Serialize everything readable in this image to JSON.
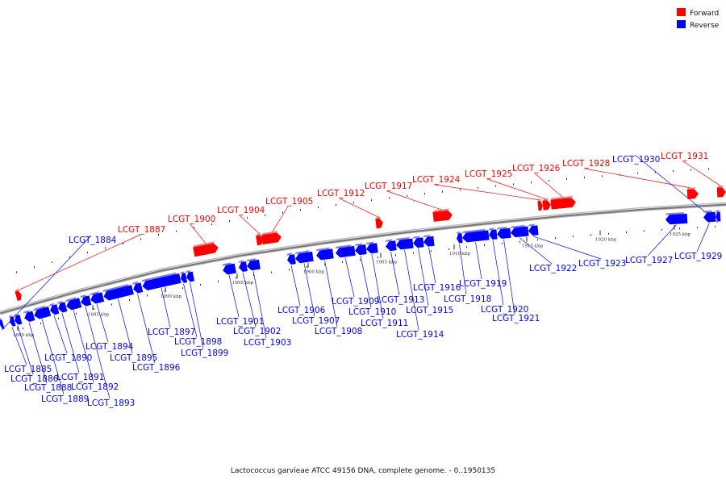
{
  "legend": [
    {
      "label": "Forward",
      "color": "#ff0000"
    },
    {
      "label": "Reverse",
      "color": "#0000ff"
    }
  ],
  "caption": "Lactococcus garvieae ATCC 49156 DNA, complete genome. - 0..1950135",
  "colors": {
    "forward": "#ff0000",
    "reverse": "#0000ff",
    "backbone": "#777777",
    "line": "#555555"
  },
  "axis_ticks": [
    "1880 kbp",
    "1885 kbp",
    "1890 kbp",
    "1895 kbp",
    "1900 kbp",
    "1905 kbp",
    "1910 kbp",
    "1915 kbp",
    "1920 kbp",
    "1925 kbp"
  ],
  "genes": [
    {
      "name": "LCGT_1884",
      "strand": "reverse"
    },
    {
      "name": "LCGT_1885",
      "strand": "reverse"
    },
    {
      "name": "LCGT_1886",
      "strand": "reverse"
    },
    {
      "name": "LCGT_1887",
      "strand": "forward"
    },
    {
      "name": "LCGT_1888",
      "strand": "reverse"
    },
    {
      "name": "LCGT_1889",
      "strand": "reverse"
    },
    {
      "name": "LCGT_1890",
      "strand": "reverse"
    },
    {
      "name": "LCGT_1891",
      "strand": "reverse"
    },
    {
      "name": "LCGT_1892",
      "strand": "reverse"
    },
    {
      "name": "LCGT_1893",
      "strand": "reverse"
    },
    {
      "name": "LCGT_1894",
      "strand": "reverse"
    },
    {
      "name": "LCGT_1895",
      "strand": "reverse"
    },
    {
      "name": "LCGT_1896",
      "strand": "reverse"
    },
    {
      "name": "LCGT_1897",
      "strand": "reverse"
    },
    {
      "name": "LCGT_1898",
      "strand": "reverse"
    },
    {
      "name": "LCGT_1899",
      "strand": "reverse"
    },
    {
      "name": "LCGT_1900",
      "strand": "forward"
    },
    {
      "name": "LCGT_1901",
      "strand": "reverse"
    },
    {
      "name": "LCGT_1902",
      "strand": "reverse"
    },
    {
      "name": "LCGT_1903",
      "strand": "reverse"
    },
    {
      "name": "LCGT_1904",
      "strand": "forward"
    },
    {
      "name": "LCGT_1905",
      "strand": "forward"
    },
    {
      "name": "LCGT_1906",
      "strand": "reverse"
    },
    {
      "name": "LCGT_1907",
      "strand": "reverse"
    },
    {
      "name": "LCGT_1908",
      "strand": "reverse"
    },
    {
      "name": "LCGT_1909",
      "strand": "reverse"
    },
    {
      "name": "LCGT_1910",
      "strand": "reverse"
    },
    {
      "name": "LCGT_1911",
      "strand": "reverse"
    },
    {
      "name": "LCGT_1912",
      "strand": "forward"
    },
    {
      "name": "LCGT_1913",
      "strand": "reverse"
    },
    {
      "name": "LCGT_1914",
      "strand": "reverse"
    },
    {
      "name": "LCGT_1915",
      "strand": "reverse"
    },
    {
      "name": "LCGT_1916",
      "strand": "reverse"
    },
    {
      "name": "LCGT_1917",
      "strand": "forward"
    },
    {
      "name": "LCGT_1918",
      "strand": "reverse"
    },
    {
      "name": "LCGT_1919",
      "strand": "reverse"
    },
    {
      "name": "LCGT_1920",
      "strand": "reverse"
    },
    {
      "name": "LCGT_1921",
      "strand": "reverse"
    },
    {
      "name": "LCGT_1922",
      "strand": "reverse"
    },
    {
      "name": "LCGT_1923",
      "strand": "reverse"
    },
    {
      "name": "LCGT_1924",
      "strand": "forward"
    },
    {
      "name": "LCGT_1925",
      "strand": "forward"
    },
    {
      "name": "LCGT_1926",
      "strand": "forward"
    },
    {
      "name": "LCGT_1927",
      "strand": "reverse"
    },
    {
      "name": "LCGT_1928",
      "strand": "forward"
    },
    {
      "name": "LCGT_1929",
      "strand": "reverse"
    },
    {
      "name": "LCGT_1930",
      "strand": "reverse"
    },
    {
      "name": "LCGT_1931",
      "strand": "forward"
    }
  ]
}
